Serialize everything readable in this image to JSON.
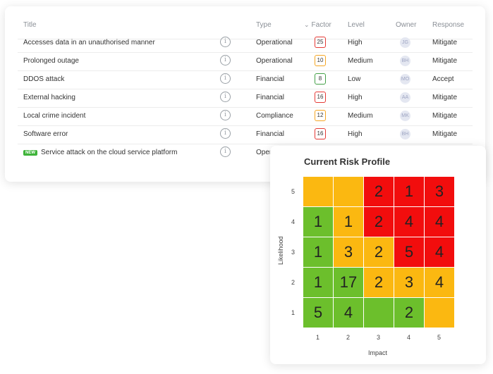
{
  "table": {
    "headers": {
      "title": "Title",
      "type": "Type",
      "factor": "Factor",
      "level": "Level",
      "owner": "Owner",
      "response": "Response"
    },
    "rows": [
      {
        "title": "Accesses  data in an unauthorised manner",
        "type": "Operational",
        "factor": "25",
        "factor_color": "#e53935",
        "level": "High",
        "owner": "JG",
        "response": "Mitigate",
        "is_new": false
      },
      {
        "title": "Prolonged outage",
        "type": "Operational",
        "factor": "10",
        "factor_color": "#f5a623",
        "level": "Medium",
        "owner": "BH",
        "response": "Mitigate",
        "is_new": false
      },
      {
        "title": "DDOS attack",
        "type": "Financial",
        "factor": "8",
        "factor_color": "#43a047",
        "level": "Low",
        "owner": "MO",
        "response": "Accept",
        "is_new": false
      },
      {
        "title": "External hacking",
        "type": "Financial",
        "factor": "16",
        "factor_color": "#e53935",
        "level": "High",
        "owner": "AA",
        "response": "Mitigate",
        "is_new": false
      },
      {
        "title": "Local crime incident",
        "type": "Compliance",
        "factor": "12",
        "factor_color": "#f5a623",
        "level": "Medium",
        "owner": "MK",
        "response": "Mitigate",
        "is_new": false
      },
      {
        "title": "Software error",
        "type": "Financial",
        "factor": "16",
        "factor_color": "#e53935",
        "level": "High",
        "owner": "BH",
        "response": "Mitigate",
        "is_new": false
      },
      {
        "title": "Service attack on the cloud service platform",
        "type": "Operational",
        "factor": "",
        "factor_color": "",
        "level": "",
        "owner": "",
        "response": "",
        "is_new": true,
        "badge": "NEW"
      }
    ]
  },
  "risk_profile": {
    "title": "Current Risk Profile",
    "ylabel": "Likelihood",
    "xlabel": "Impact",
    "ticks": [
      "1",
      "2",
      "3",
      "4",
      "5"
    ],
    "colors": {
      "green": "#6cbf2c",
      "amber": "#fbb811",
      "red": "#f20d0d"
    },
    "grid": [
      [
        {
          "c": "amber",
          "v": ""
        },
        {
          "c": "amber",
          "v": ""
        },
        {
          "c": "red",
          "v": "2"
        },
        {
          "c": "red",
          "v": "1"
        },
        {
          "c": "red",
          "v": "3"
        }
      ],
      [
        {
          "c": "green",
          "v": "1"
        },
        {
          "c": "amber",
          "v": "1"
        },
        {
          "c": "red",
          "v": "2"
        },
        {
          "c": "red",
          "v": "4"
        },
        {
          "c": "red",
          "v": "4"
        }
      ],
      [
        {
          "c": "green",
          "v": "1"
        },
        {
          "c": "amber",
          "v": "3"
        },
        {
          "c": "amber",
          "v": "2"
        },
        {
          "c": "red",
          "v": "5"
        },
        {
          "c": "red",
          "v": "4"
        }
      ],
      [
        {
          "c": "green",
          "v": "1"
        },
        {
          "c": "green",
          "v": "17"
        },
        {
          "c": "amber",
          "v": "2"
        },
        {
          "c": "amber",
          "v": "3"
        },
        {
          "c": "amber",
          "v": "4"
        }
      ],
      [
        {
          "c": "green",
          "v": "5"
        },
        {
          "c": "green",
          "v": "4"
        },
        {
          "c": "green",
          "v": ""
        },
        {
          "c": "green",
          "v": "2"
        },
        {
          "c": "amber",
          "v": ""
        }
      ]
    ]
  }
}
